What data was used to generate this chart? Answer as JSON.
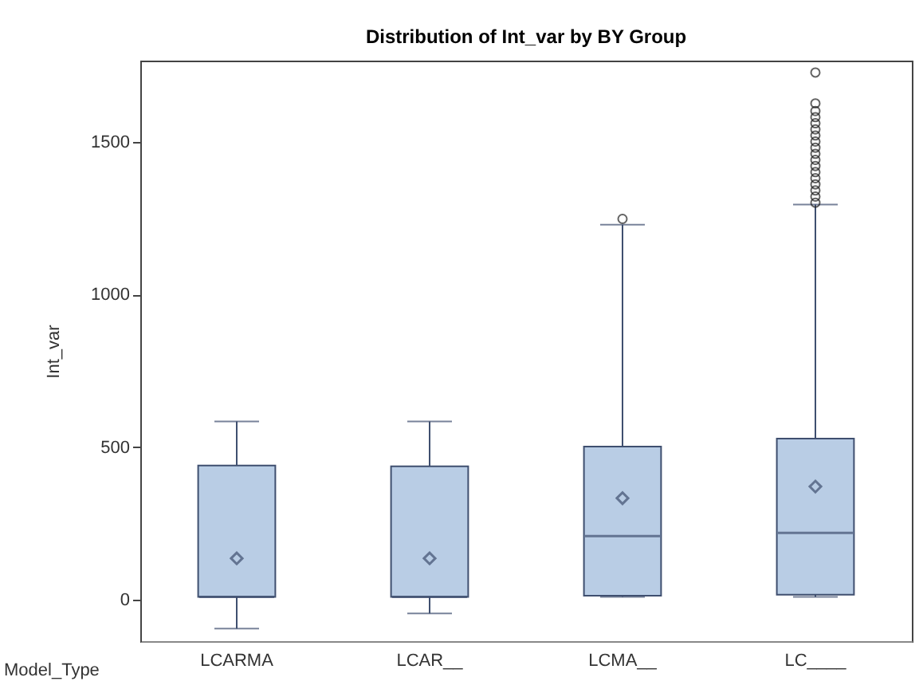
{
  "chart_data": {
    "type": "box",
    "title": "Distribution of Int_var by BY Group",
    "xlabel": "Model_Type",
    "ylabel": "Int_var",
    "categories": [
      "LCARMA",
      "LCAR__",
      "LCMA__",
      "LC____"
    ],
    "ylim": [
      -135,
      1765
    ],
    "yticks": [
      0,
      500,
      1000,
      1500
    ],
    "grid": false,
    "series": [
      {
        "color": "#b9cde5",
        "boxes": [
          {
            "low": -94,
            "q1": 10,
            "median": 10,
            "q3": 440,
            "high": 584,
            "mean": 136
          },
          {
            "low": -44,
            "q1": 10,
            "median": 10,
            "q3": 437,
            "high": 584,
            "mean": 136
          },
          {
            "low": 10,
            "q1": 14,
            "median": 209,
            "q3": 502,
            "high": 1228,
            "mean": 333,
            "outliers": [
              1247
            ]
          },
          {
            "low": 10,
            "q1": 17,
            "median": 219,
            "q3": 528,
            "high": 1294,
            "mean": 371,
            "outliers": [
              1300,
              1320,
              1340,
              1360,
              1380,
              1400,
              1420,
              1440,
              1460,
              1480,
              1500,
              1520,
              1540,
              1560,
              1580,
              1600,
              1625,
              1726
            ]
          }
        ]
      }
    ]
  }
}
